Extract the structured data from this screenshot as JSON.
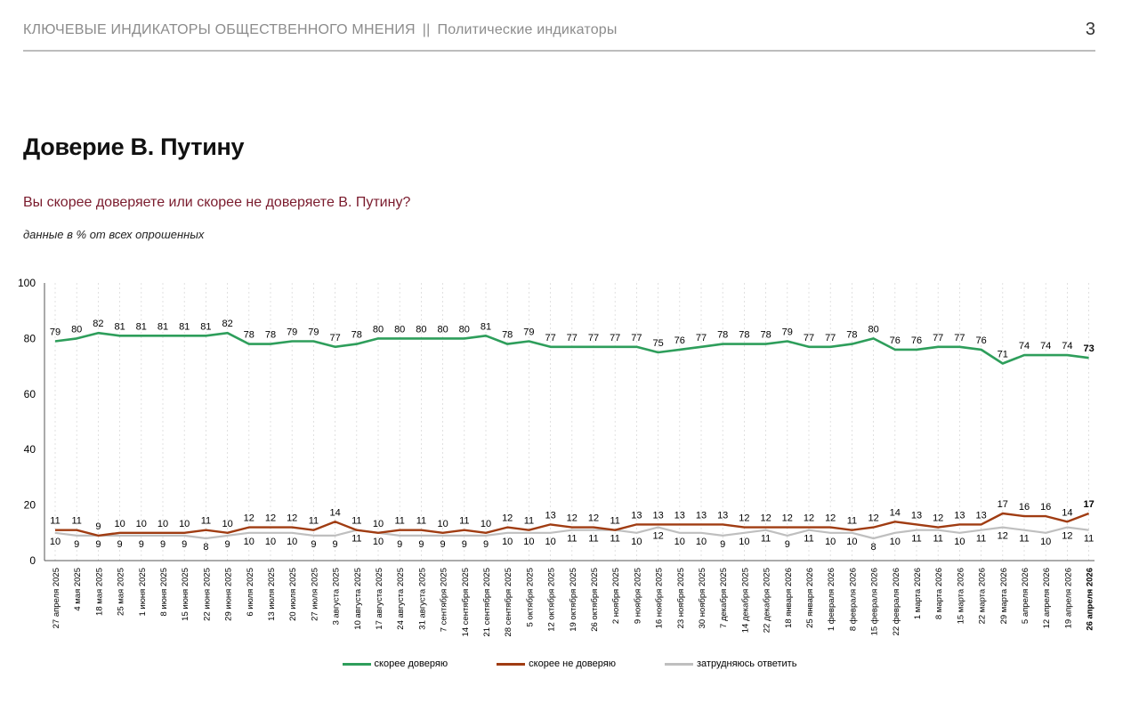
{
  "header": {
    "left_text": "КЛЮЧЕВЫЕ ИНДИКАТОРЫ ОБЩЕСТВЕННОГО МНЕНИЯ",
    "separator": "||",
    "section": "Политические индикаторы",
    "page_number": "3"
  },
  "title": "Доверие В. Путину",
  "question": "Вы скорее доверяете или скорее не доверяете В. Путину?",
  "note": "данные в % от всех опрошенных",
  "colors": {
    "trust": "#2e9e5b",
    "distrust": "#a03c12",
    "hard": "#bfbfbf"
  },
  "chart_data": {
    "type": "line",
    "ylim": [
      0,
      100
    ],
    "yticks": [
      0,
      20,
      40,
      60,
      80,
      100
    ],
    "grid": "vertical dashed",
    "legend_position": "bottom-center",
    "categories": [
      "27 апреля 2025",
      "4 мая 2025",
      "18 мая 2025",
      "25 мая 2025",
      "1 июня 2025",
      "8 июня 2025",
      "15 июня 2025",
      "22 июня 2025",
      "29 июня 2025",
      "6 июля 2025",
      "13 июля 2025",
      "20 июля 2025",
      "27 июля 2025",
      "3 августа 2025",
      "10 августа 2025",
      "17 августа 2025",
      "24 августа 2025",
      "31 августа 2025",
      "7 сентября 2025",
      "14 сентября 2025",
      "21 сентября 2025",
      "28 сентября 2025",
      "5 октября 2025",
      "12 октября 2025",
      "19 октября 2025",
      "26 октября 2025",
      "2 ноября 2025",
      "9 ноября 2025",
      "16 ноября 2025",
      "23 ноября 2025",
      "30 ноября 2025",
      "7 декабря 2025",
      "14 декабря 2025",
      "22 декабря 2025",
      "18 января 2026",
      "25 января 2026",
      "1 февраля 2026",
      "8 февраля 2026",
      "15 февраля 2026",
      "22 февраля 2026",
      "1 марта 2026",
      "8 марта 2026",
      "15 марта 2026",
      "22 марта 2026",
      "29 марта 2026",
      "5 апреля 2026",
      "12 апреля 2026",
      "19 апреля 2026",
      "26 апреля 2026"
    ],
    "series": [
      {
        "name": "скорее доверяю",
        "values": [
          79,
          80,
          82,
          81,
          81,
          81,
          81,
          81,
          82,
          78,
          78,
          79,
          79,
          77,
          78,
          80,
          80,
          80,
          80,
          80,
          81,
          78,
          79,
          77,
          77,
          77,
          77,
          77,
          75,
          76,
          77,
          78,
          78,
          78,
          79,
          77,
          77,
          78,
          80,
          76,
          76,
          77,
          77,
          76,
          71,
          74,
          74,
          74,
          73
        ]
      },
      {
        "name": "скорее не доверяю",
        "values": [
          11,
          11,
          9,
          10,
          10,
          10,
          10,
          11,
          10,
          12,
          12,
          12,
          11,
          14,
          11,
          10,
          11,
          11,
          10,
          11,
          10,
          12,
          11,
          13,
          12,
          12,
          11,
          13,
          13,
          13,
          13,
          13,
          12,
          12,
          12,
          12,
          12,
          11,
          12,
          14,
          13,
          12,
          13,
          13,
          17,
          16,
          16,
          14,
          17
        ]
      },
      {
        "name": "затрудняюсь ответить",
        "values": [
          10,
          9,
          9,
          9,
          9,
          9,
          9,
          8,
          9,
          10,
          10,
          10,
          9,
          9,
          11,
          10,
          9,
          9,
          9,
          9,
          9,
          10,
          10,
          10,
          11,
          11,
          11,
          10,
          12,
          10,
          10,
          9,
          10,
          11,
          9,
          11,
          10,
          10,
          8,
          10,
          11,
          11,
          10,
          11,
          12,
          11,
          10,
          12,
          11
        ]
      }
    ]
  }
}
